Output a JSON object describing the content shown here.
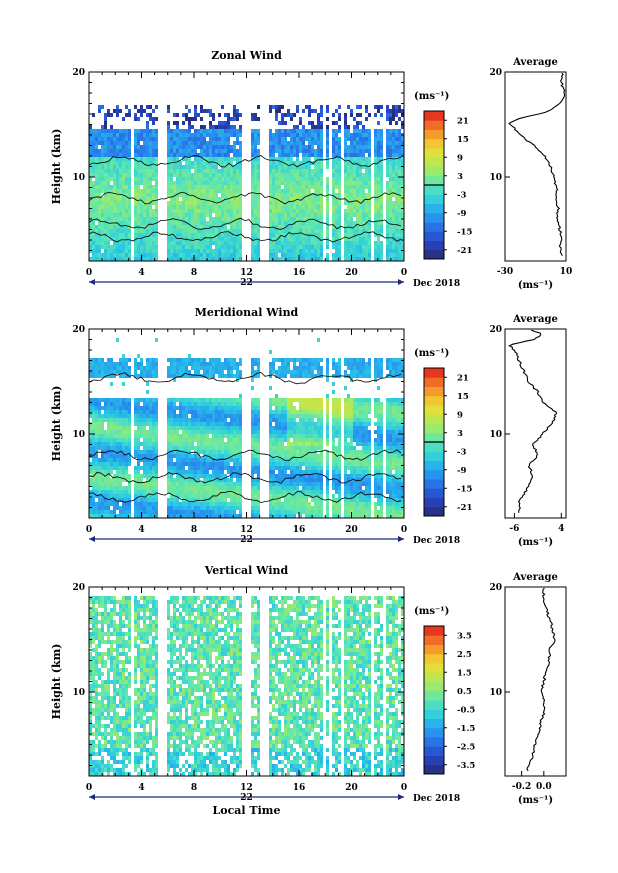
{
  "chart_data": [
    {
      "type": "heatmap",
      "title": "Zonal Wind",
      "ylabel": "Height (km)",
      "yticks": [
        "20",
        "10"
      ],
      "ylim": [
        2,
        20
      ],
      "xticks": [
        "0",
        "4",
        "8",
        "12",
        "16",
        "20",
        "0"
      ],
      "xlim": [
        0,
        24
      ],
      "date_day": "22",
      "date_label": "Dec 2018",
      "colorbar": {
        "unit": "(ms⁻¹)",
        "ticks": [
          "21",
          "15",
          "9",
          "3",
          "-3",
          "-9",
          "-15",
          "-21"
        ],
        "range": [
          -24,
          24
        ],
        "zero_line": true
      },
      "average": {
        "title": "Average",
        "yticks": [
          "20",
          "10"
        ],
        "xticks": [
          "-30",
          "10"
        ],
        "xlim": [
          -30,
          10
        ],
        "xlabel": "(ms⁻¹)",
        "profile_height_km": [
          2.5,
          3,
          4,
          5,
          6,
          7,
          8,
          9,
          10,
          11,
          12,
          13,
          14,
          14.8,
          15.2,
          15.6,
          16.2,
          17,
          18,
          19,
          20
        ],
        "profile_value": [
          7,
          6,
          7,
          6,
          4,
          5,
          3,
          4,
          2,
          0,
          -4,
          -11,
          -20,
          -25,
          -27,
          -20,
          -2,
          6,
          9,
          7,
          8
        ]
      }
    },
    {
      "type": "heatmap",
      "title": "Meridional Wind",
      "ylabel": "Height (km)",
      "yticks": [
        "20",
        "10"
      ],
      "ylim": [
        2,
        20
      ],
      "xticks": [
        "0",
        "4",
        "8",
        "12",
        "16",
        "20",
        "0"
      ],
      "xlim": [
        0,
        24
      ],
      "date_day": "22",
      "date_label": "Dec 2018",
      "colorbar": {
        "unit": "(ms⁻¹)",
        "ticks": [
          "21",
          "15",
          "9",
          "3",
          "-3",
          "-9",
          "-15",
          "-21"
        ],
        "range": [
          -24,
          24
        ],
        "zero_line": true
      },
      "average": {
        "title": "Average",
        "yticks": [
          "20",
          "10"
        ],
        "xticks": [
          "-6",
          "4"
        ],
        "xlim": [
          -8,
          5
        ],
        "xlabel": "(ms⁻¹)",
        "profile_height_km": [
          2.5,
          3.5,
          5,
          6,
          7,
          8,
          9,
          10,
          11,
          12,
          13,
          14,
          15,
          16,
          17,
          18,
          18.5,
          19,
          19.5,
          20
        ],
        "profile_value": [
          -5,
          -5,
          -3,
          -2,
          -3,
          -1,
          -2,
          0,
          2,
          3,
          0,
          -1,
          -3,
          -4,
          -5,
          -6,
          -7,
          -2,
          0,
          -3
        ]
      }
    },
    {
      "type": "heatmap",
      "title": "Vertical Wind",
      "ylabel": "Height (km)",
      "yticks": [
        "20",
        "10"
      ],
      "ylim": [
        2,
        20
      ],
      "xticks": [
        "0",
        "4",
        "8",
        "12",
        "16",
        "20",
        "0"
      ],
      "xlim": [
        0,
        24
      ],
      "date_day": "22",
      "date_label": "Dec 2018",
      "xlabel": "Local Time",
      "colorbar": {
        "unit": "(ms⁻¹)",
        "ticks": [
          "3.5",
          "2.5",
          "1.5",
          "0.5",
          "-0.5",
          "-1.5",
          "-2.5",
          "-3.5"
        ],
        "range": [
          -4,
          4
        ],
        "zero_line": false
      },
      "average": {
        "title": "Average",
        "yticks": [
          "20",
          "10"
        ],
        "xticks": [
          "-0.2",
          "0.0"
        ],
        "xlim": [
          -0.35,
          0.2
        ],
        "xlabel": "(ms⁻¹)",
        "profile_height_km": [
          2.5,
          4,
          5,
          6,
          7,
          8,
          9,
          10,
          11,
          12,
          13,
          14,
          15,
          16,
          17,
          18,
          19,
          20
        ],
        "profile_value": [
          -0.15,
          -0.1,
          -0.08,
          -0.05,
          -0.03,
          0.0,
          0.0,
          -0.02,
          0.0,
          0.02,
          0.05,
          0.05,
          0.1,
          0.08,
          0.05,
          0.02,
          0.0,
          0.0
        ]
      }
    }
  ]
}
